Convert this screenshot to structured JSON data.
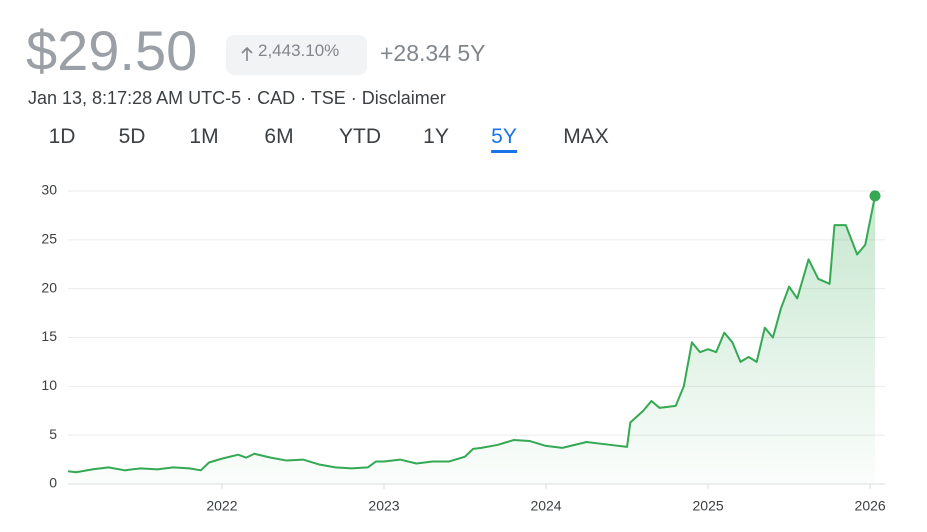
{
  "header": {
    "price": "$29.50",
    "change_percent": "2,443.10%",
    "change": "+28.34",
    "period": "5Y",
    "meta": "Jan 13, 8:17:28 AM UTC-5 · CAD · TSE · Disclaimer"
  },
  "tabs": {
    "items": [
      "1D",
      "5D",
      "1M",
      "6M",
      "YTD",
      "1Y",
      "5Y",
      "MAX"
    ],
    "selected": 6
  },
  "chart_data": {
    "type": "line",
    "x": [
      2021.05,
      2021.1,
      2021.2,
      2021.3,
      2021.4,
      2021.5,
      2021.6,
      2021.7,
      2021.8,
      2021.87,
      2021.92,
      2022.0,
      2022.1,
      2022.15,
      2022.2,
      2022.3,
      2022.4,
      2022.5,
      2022.6,
      2022.7,
      2022.8,
      2022.9,
      2022.95,
      2023.0,
      2023.1,
      2023.2,
      2023.3,
      2023.4,
      2023.5,
      2023.55,
      2023.6,
      2023.7,
      2023.8,
      2023.9,
      2024.0,
      2024.1,
      2024.25,
      2024.4,
      2024.5,
      2024.52,
      2024.6,
      2024.65,
      2024.7,
      2024.8,
      2024.85,
      2024.9,
      2024.95,
      2025.0,
      2025.05,
      2025.1,
      2025.15,
      2025.2,
      2025.25,
      2025.3,
      2025.35,
      2025.4,
      2025.45,
      2025.5,
      2025.55,
      2025.62,
      2025.68,
      2025.75,
      2025.78,
      2025.85,
      2025.92,
      2025.97,
      2026.03
    ],
    "series": [
      {
        "color": "#34a853",
        "values": [
          1.3,
          1.2,
          1.5,
          1.7,
          1.4,
          1.6,
          1.5,
          1.7,
          1.6,
          1.4,
          2.2,
          2.6,
          3.0,
          2.7,
          3.1,
          2.7,
          2.4,
          2.5,
          2.0,
          1.7,
          1.6,
          1.7,
          2.3,
          2.3,
          2.5,
          2.1,
          2.3,
          2.3,
          2.8,
          3.6,
          3.7,
          4.0,
          4.5,
          4.4,
          3.9,
          3.7,
          4.3,
          4.0,
          3.8,
          6.3,
          7.5,
          8.5,
          7.8,
          8.0,
          10,
          14.5,
          13.5,
          13.8,
          13.5,
          15.5,
          14.5,
          12.5,
          13,
          12.5,
          16,
          15,
          18,
          20.2,
          19,
          23,
          21,
          20.5,
          26.5,
          26.5,
          23.5,
          24.5,
          29.5
        ]
      }
    ],
    "xlim": [
      2021.05,
      2026.03
    ],
    "ylim": [
      0,
      30
    ],
    "xticks": [
      2022,
      2023,
      2024,
      2025,
      2026
    ],
    "yticks": [
      0,
      5,
      10,
      15,
      20,
      25,
      30
    ],
    "grid": true
  }
}
